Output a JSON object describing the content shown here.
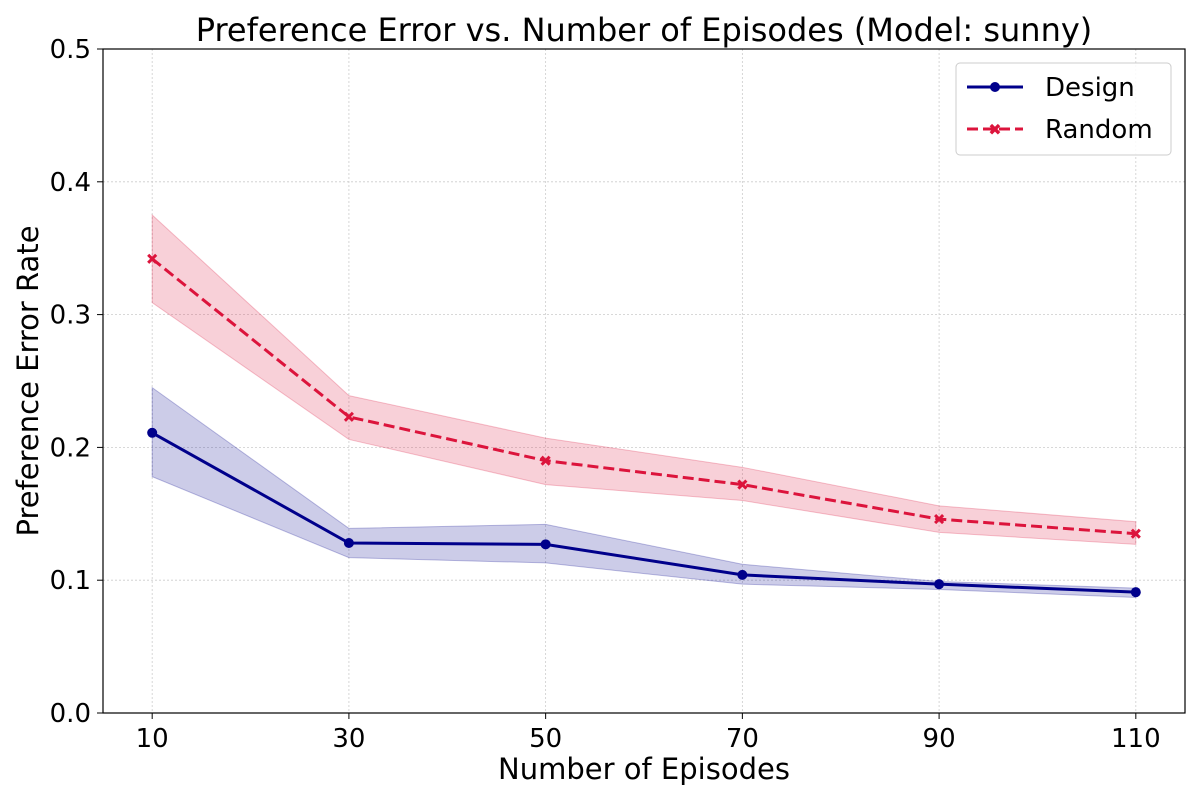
{
  "chart_data": {
    "type": "line",
    "title": "Preference Error vs. Number of Episodes (Model: sunny)",
    "xlabel": "Number of Episodes",
    "ylabel": "Preference Error Rate",
    "x": [
      10,
      30,
      50,
      70,
      90,
      110
    ],
    "xticks": [
      "10",
      "30",
      "50",
      "70",
      "90",
      "110"
    ],
    "xlim": [
      5,
      115
    ],
    "ylim": [
      0,
      0.5
    ],
    "yticks": [
      "0.0",
      "0.1",
      "0.2",
      "0.3",
      "0.4",
      "0.5"
    ],
    "grid": true,
    "legend_position": "top-right",
    "series": [
      {
        "name": "Design",
        "color": "#00008b",
        "marker": "circle",
        "linestyle": "solid",
        "values": [
          0.211,
          0.128,
          0.127,
          0.104,
          0.097,
          0.091
        ],
        "lower": [
          0.178,
          0.117,
          0.113,
          0.097,
          0.093,
          0.087
        ],
        "upper": [
          0.245,
          0.139,
          0.142,
          0.112,
          0.099,
          0.094
        ]
      },
      {
        "name": "Random",
        "color": "#dc143c",
        "marker": "x",
        "linestyle": "dashed",
        "values": [
          0.342,
          0.223,
          0.19,
          0.172,
          0.146,
          0.135
        ],
        "lower": [
          0.309,
          0.206,
          0.172,
          0.16,
          0.136,
          0.127
        ],
        "upper": [
          0.375,
          0.239,
          0.207,
          0.185,
          0.156,
          0.144
        ]
      }
    ]
  }
}
